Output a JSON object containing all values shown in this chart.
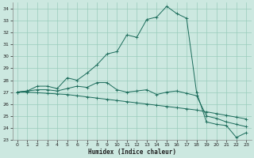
{
  "bg_color": "#cce8e0",
  "grid_color": "#99ccbb",
  "line_color": "#1a6b5a",
  "marker_color": "#1a6b5a",
  "xlabel": "Humidex (Indice chaleur)",
  "ylim": [
    23,
    34.5
  ],
  "xlim": [
    -0.5,
    23.5
  ],
  "yticks": [
    23,
    24,
    25,
    26,
    27,
    28,
    29,
    30,
    31,
    32,
    33,
    34
  ],
  "xticks": [
    0,
    1,
    2,
    3,
    4,
    5,
    6,
    7,
    8,
    9,
    10,
    11,
    12,
    13,
    14,
    15,
    16,
    17,
    18,
    19,
    20,
    21,
    22,
    23
  ],
  "series1_x": [
    0,
    1,
    2,
    3,
    4,
    5,
    6,
    7,
    8,
    9,
    10,
    11,
    12,
    13,
    14,
    15,
    16,
    17,
    18,
    19,
    20,
    21,
    22,
    23
  ],
  "series1_y": [
    27.0,
    27.1,
    27.5,
    27.5,
    27.3,
    28.2,
    28.0,
    28.6,
    29.3,
    30.2,
    30.4,
    31.8,
    31.6,
    33.1,
    33.3,
    34.2,
    33.6,
    33.2,
    27.0,
    24.5,
    24.3,
    24.2,
    23.2,
    23.6
  ],
  "series2_x": [
    0,
    1,
    2,
    3,
    4,
    5,
    6,
    7,
    8,
    9,
    10,
    11,
    12,
    13,
    14,
    15,
    16,
    17,
    18,
    19,
    20,
    21,
    22,
    23
  ],
  "series2_y": [
    27.0,
    27.1,
    27.2,
    27.2,
    27.1,
    27.3,
    27.5,
    27.4,
    27.8,
    27.8,
    27.2,
    27.0,
    27.1,
    27.2,
    26.8,
    27.0,
    27.1,
    26.9,
    26.7,
    25.0,
    24.8,
    24.5,
    24.3,
    24.1
  ],
  "series3_x": [
    0,
    1,
    2,
    3,
    4,
    5,
    6,
    7,
    8,
    9,
    10,
    11,
    12,
    13,
    14,
    15,
    16,
    17,
    18,
    19,
    20,
    21,
    22,
    23
  ],
  "series3_y": [
    27.0,
    27.0,
    26.95,
    26.9,
    26.85,
    26.8,
    26.7,
    26.6,
    26.5,
    26.4,
    26.3,
    26.2,
    26.1,
    26.0,
    25.9,
    25.8,
    25.7,
    25.6,
    25.5,
    25.35,
    25.2,
    25.05,
    24.9,
    24.75
  ]
}
